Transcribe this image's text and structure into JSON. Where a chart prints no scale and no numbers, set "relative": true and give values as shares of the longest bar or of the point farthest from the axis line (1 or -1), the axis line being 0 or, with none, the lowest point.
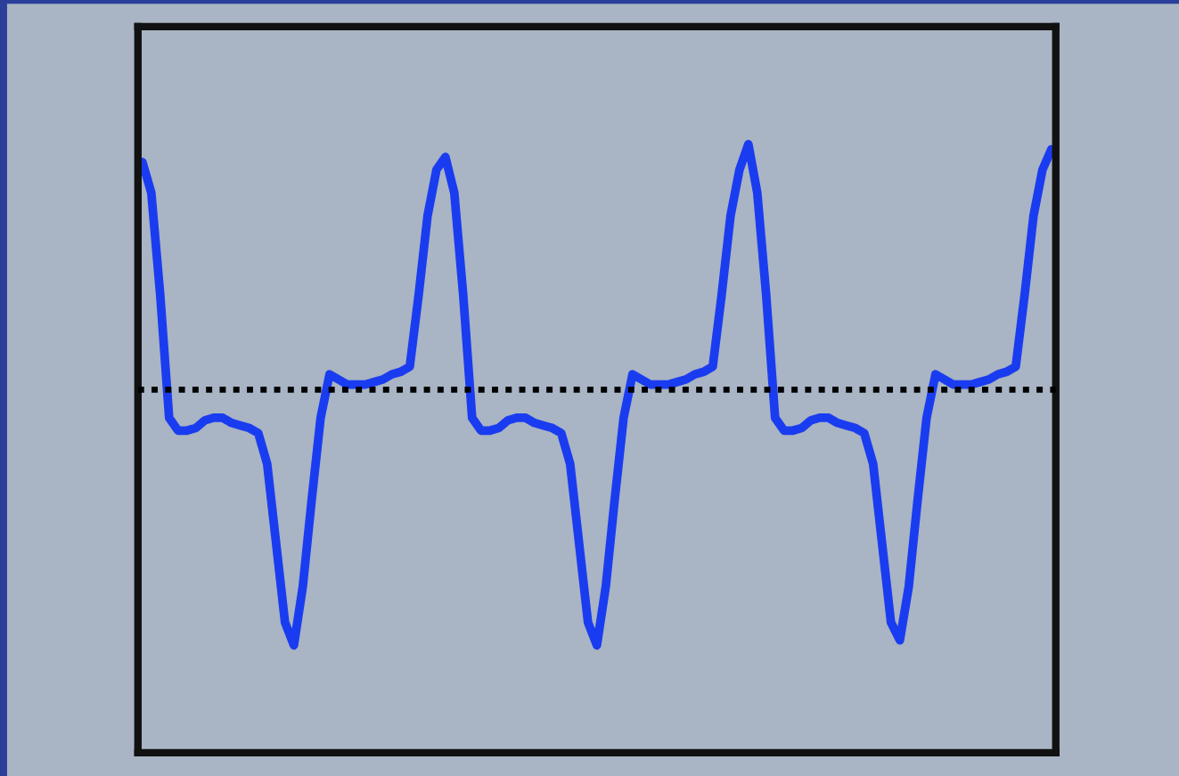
{
  "chart_data": {
    "type": "line",
    "relative": true,
    "legend": false,
    "marker": "none",
    "line_style": "solid",
    "categories": [
      null,
      null,
      null,
      null,
      null,
      null,
      null,
      null,
      null,
      null,
      null,
      null,
      null,
      null,
      null,
      null,
      null,
      null,
      null,
      null,
      null,
      null,
      null,
      null,
      null,
      null,
      null,
      null,
      null,
      null,
      null,
      null,
      null,
      null,
      null,
      null,
      null,
      null,
      null,
      null,
      null,
      null,
      null,
      null,
      null,
      null,
      null,
      null,
      null,
      null,
      null,
      null,
      null,
      null,
      null,
      null,
      null,
      null,
      null,
      null,
      null,
      null,
      null,
      null,
      null,
      null,
      null,
      null,
      null,
      null,
      null,
      null,
      null,
      null,
      null,
      null,
      null,
      null,
      null,
      null,
      null,
      null,
      null,
      null,
      null,
      null,
      null,
      null,
      null,
      null,
      null,
      null,
      null,
      null,
      null,
      null,
      null,
      null,
      null,
      null,
      null,
      null,
      null
    ],
    "series": [
      {
        "color": "#1a3cf0",
        "values": [
          0.89,
          0.77,
          0.37,
          -0.11,
          -0.16,
          -0.16,
          -0.15,
          -0.12,
          -0.11,
          -0.11,
          -0.13,
          -0.14,
          -0.15,
          -0.17,
          -0.29,
          -0.6,
          -0.91,
          -1.0,
          -0.77,
          -0.43,
          -0.11,
          0.06,
          0.04,
          0.02,
          0.02,
          0.02,
          0.03,
          0.04,
          0.06,
          0.07,
          0.09,
          0.37,
          0.68,
          0.86,
          0.91,
          0.77,
          0.37,
          -0.11,
          -0.16,
          -0.16,
          -0.15,
          -0.12,
          -0.11,
          -0.11,
          -0.13,
          -0.14,
          -0.15,
          -0.17,
          -0.29,
          -0.6,
          -0.91,
          -1.0,
          -0.77,
          -0.43,
          -0.11,
          0.06,
          0.04,
          0.02,
          0.02,
          0.02,
          0.03,
          0.04,
          0.06,
          0.07,
          0.09,
          0.37,
          0.68,
          0.86,
          0.96,
          0.77,
          0.37,
          -0.11,
          -0.16,
          -0.16,
          -0.15,
          -0.12,
          -0.11,
          -0.11,
          -0.13,
          -0.14,
          -0.15,
          -0.17,
          -0.29,
          -0.6,
          -0.91,
          -0.98,
          -0.77,
          -0.43,
          -0.11,
          0.06,
          0.04,
          0.02,
          0.02,
          0.02,
          0.03,
          0.04,
          0.06,
          0.07,
          0.09,
          0.37,
          0.68,
          0.86,
          0.94
        ]
      }
    ],
    "ref_lines": [
      {
        "axis": "y",
        "value": 0,
        "color": "#000000",
        "line_style": "dotted"
      }
    ]
  }
}
